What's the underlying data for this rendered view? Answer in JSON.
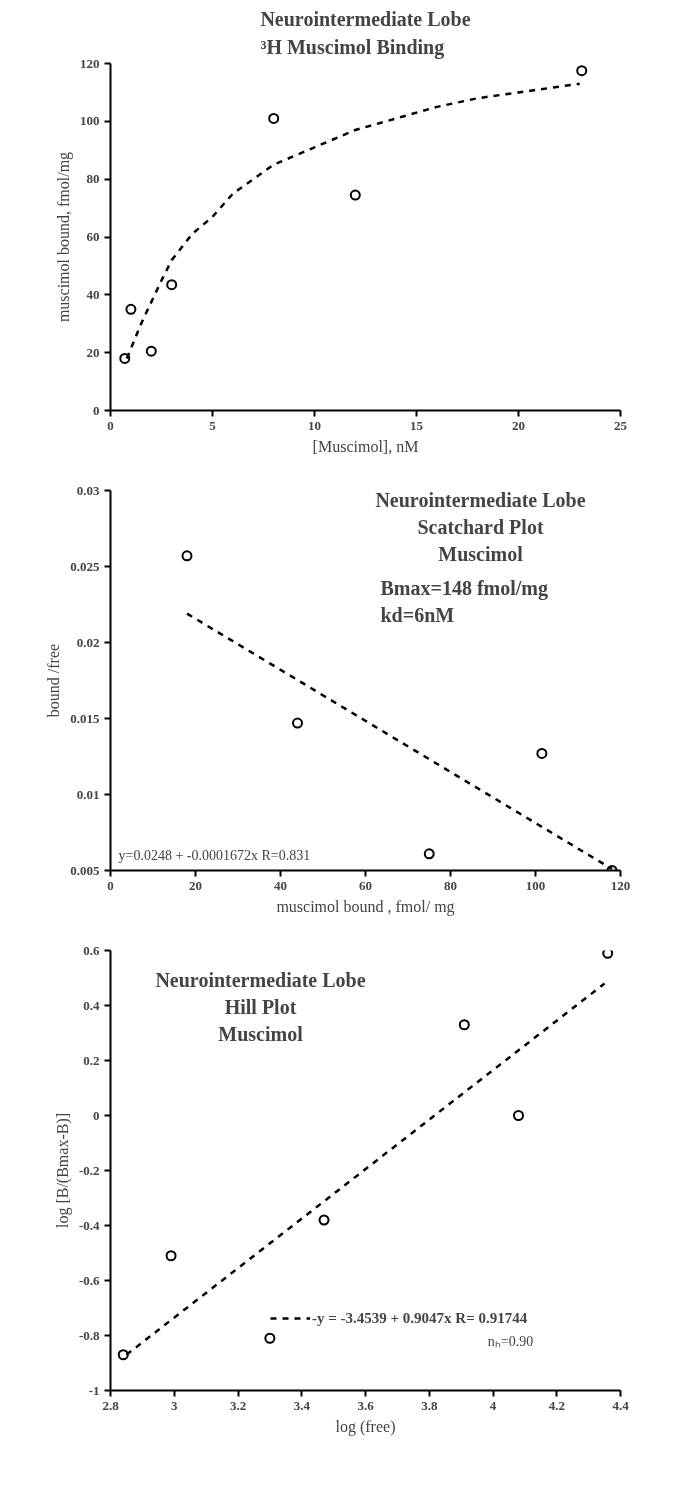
{
  "chart_data": [
    {
      "type": "scatter",
      "title": "Neurointermediate Lobe\n³H Muscimol Binding",
      "xlabel": "[Muscimol], nM",
      "ylabel": "muscimol bound, fmol/mg",
      "xlim": [
        0,
        25
      ],
      "xticks": [
        0,
        5,
        10,
        15,
        20,
        25
      ],
      "ylim": [
        0,
        120
      ],
      "yticks": [
        0,
        20,
        40,
        60,
        80,
        100,
        120
      ],
      "grid": false,
      "series": [
        {
          "marker": "circle",
          "color": "#000000",
          "x": [
            0.7,
            1,
            2,
            3,
            8,
            12,
            23.1
          ],
          "values": [
            18,
            35,
            20.5,
            43.5,
            101,
            74.5,
            117.5
          ]
        },
        {
          "type": "line",
          "color": "#000000",
          "line_style": "dashed",
          "x": [
            0.8,
            1.5,
            2.5,
            3,
            4,
            5,
            6,
            8,
            10,
            12,
            14,
            16,
            18,
            20,
            23
          ],
          "values": [
            18,
            30,
            45,
            52,
            61,
            67,
            75,
            85,
            91,
            97,
            101,
            105,
            108,
            110,
            113
          ]
        }
      ]
    },
    {
      "type": "scatter",
      "title": "Neurointermediate Lobe\nScatchard Plot\nMuscimol",
      "xlabel": "muscimol bound , fmol/ mg",
      "ylabel": "bound /free",
      "xlim": [
        0,
        120
      ],
      "xticks": [
        0,
        20,
        40,
        60,
        80,
        100,
        120
      ],
      "ylim": [
        0.005,
        0.03
      ],
      "yticks": [
        0.005,
        0.01,
        0.015,
        0.02,
        0.025,
        0.03
      ],
      "grid": false,
      "annotations": [
        "Bmax=148 fmol/mg",
        "kd=6nM",
        "y=0.0248 + -0.0001672x R=0.831"
      ],
      "series": [
        {
          "marker": "circle",
          "color": "#000000",
          "x": [
            18,
            44,
            75,
            101.5,
            118
          ],
          "values": [
            0.0257,
            0.0147,
            0.0061,
            0.0127,
            0.005
          ]
        },
        {
          "type": "line",
          "color": "#000000",
          "line_style": "dashed",
          "x": [
            18,
            118
          ],
          "values": [
            0.0219,
            0.0051
          ]
        }
      ]
    },
    {
      "type": "scatter",
      "title": "Neurointermediate Lobe\nHill Plot\nMuscimol",
      "xlabel": "log (free)",
      "ylabel": "log [B/(Bmax-B)]",
      "xlim": [
        2.8,
        4.4
      ],
      "xticks": [
        2.8,
        3,
        3.2,
        3.4,
        3.6,
        3.8,
        4,
        4.2,
        4.4
      ],
      "ylim": [
        -1,
        0.6
      ],
      "yticks": [
        -1,
        -0.8,
        -0.6,
        -0.4,
        -0.2,
        0,
        0.2,
        0.4,
        0.6
      ],
      "grid": false,
      "legend": "bottom right",
      "annotations": [
        "nₕ=0.90"
      ],
      "series": [
        {
          "marker": "circle",
          "color": "#000000",
          "x": [
            2.84,
            2.99,
            3.3,
            3.47,
            3.91,
            4.08,
            4.36
          ],
          "values": [
            -0.87,
            -0.51,
            -0.81,
            -0.38,
            0.33,
            0.0,
            0.59
          ]
        },
        {
          "type": "line",
          "name": "-y = -3.4539 + 0.9047x R= 0.91744",
          "color": "#000000",
          "line_style": "dashed",
          "x": [
            2.85,
            4.35
          ],
          "values": [
            -0.87,
            0.48
          ]
        }
      ]
    }
  ]
}
